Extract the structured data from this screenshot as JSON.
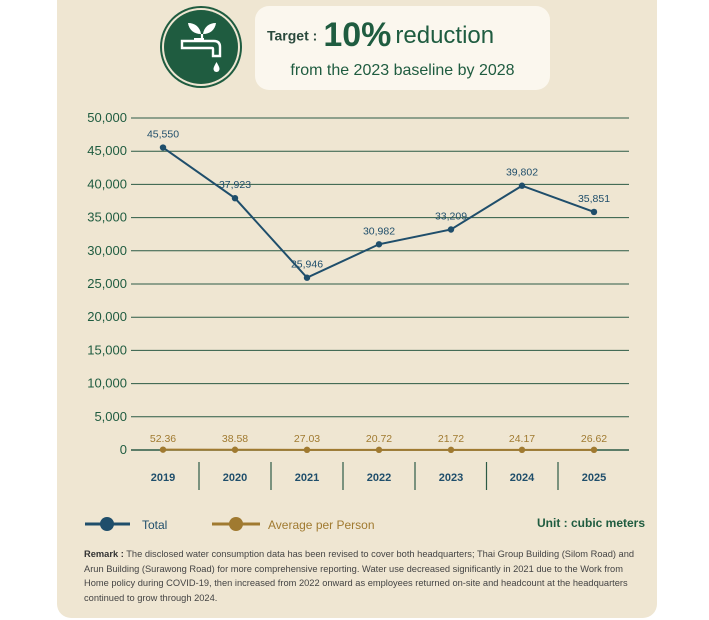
{
  "target": {
    "label": "Target :",
    "percent": "10%",
    "reduction": "reduction",
    "subtitle": "from the 2023 baseline by 2028"
  },
  "icon": "water-tap-plant-icon",
  "colors": {
    "dark_green": "#1f5c40",
    "total_line": "#1f4e6b",
    "avg_line": "#a07a30",
    "panel": "#efe6d2",
    "grid": "#2c5a45"
  },
  "chart_data": {
    "type": "line",
    "x": [
      "2019",
      "2020",
      "2021",
      "2022",
      "2023",
      "2024",
      "2025"
    ],
    "ylim": [
      0,
      50000
    ],
    "y_ticks": [
      "50,000",
      "45,000",
      "40,000",
      "35,000",
      "30,000",
      "25,000",
      "20,000",
      "15,000",
      "10,000",
      "5,000",
      "0"
    ],
    "y_tick_values": [
      50000,
      45000,
      40000,
      35000,
      30000,
      25000,
      20000,
      15000,
      10000,
      5000,
      0
    ],
    "grid": true,
    "series": [
      {
        "name": "Total",
        "color": "#1f4e6b",
        "values": [
          45550,
          37923,
          25946,
          30982,
          33209,
          39802,
          35851
        ],
        "labels": [
          "45,550",
          "37,923",
          "25,946",
          "30,982",
          "33,209",
          "39,802",
          "35,851"
        ]
      },
      {
        "name": "Average per Person",
        "color": "#a07a30",
        "values": [
          52.36,
          38.58,
          27.03,
          20.72,
          21.72,
          24.17,
          26.62
        ],
        "labels": [
          "52.36",
          "38.58",
          "27.03",
          "20.72",
          "21.72",
          "24.17",
          "26.62"
        ]
      }
    ],
    "legend_position": "bottom-left"
  },
  "unit": "Unit : cubic meters",
  "remark": {
    "label": "Remark :",
    "text": "The disclosed water consumption data has been revised to cover both headquarters; Thai Group Building (Silom Road) and Arun Building (Surawong Road) for more comprehensive reporting. Water use decreased significantly in 2021 due to the Work from Home policy during COVID-19, then increased from 2022 onward as employees returned on-site and headcount at the headquarters continued to grow through 2024."
  }
}
